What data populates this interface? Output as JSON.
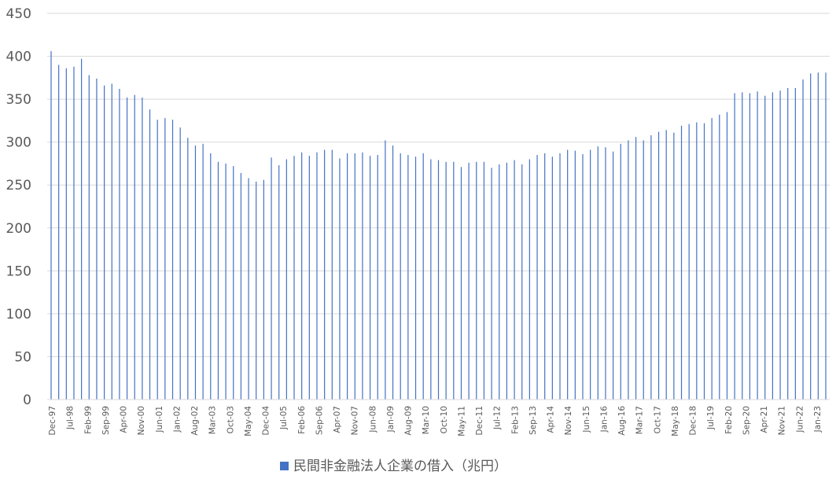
{
  "chart_data": {
    "type": "bar",
    "title": "",
    "xlabel": "",
    "ylabel": "",
    "ylim": [
      0,
      450
    ],
    "yticks": [
      0,
      50,
      100,
      150,
      200,
      250,
      300,
      350,
      400,
      450
    ],
    "grid": true,
    "legend_position": "bottom",
    "colors": {
      "series": "#4472C4",
      "grid": "#d9d9d9",
      "text": "#595959"
    },
    "series": [
      {
        "name": "民間非金融法人企業の借入（兆円）",
        "values": [
          406,
          390,
          386,
          388,
          397,
          378,
          374,
          366,
          368,
          362,
          352,
          355,
          352,
          338,
          326,
          328,
          326,
          317,
          305,
          296,
          298,
          287,
          277,
          275,
          272,
          264,
          258,
          254,
          256,
          282,
          273,
          280,
          284,
          288,
          284,
          288,
          291,
          291,
          281,
          287,
          287,
          288,
          284,
          285,
          302,
          296,
          287,
          285,
          283,
          287,
          280,
          279,
          277,
          277,
          271,
          276,
          277,
          277,
          270,
          274,
          276,
          279,
          274,
          280,
          285,
          287,
          283,
          287,
          291,
          290,
          286,
          291,
          295,
          294,
          289,
          298,
          302,
          306,
          302,
          308,
          312,
          314,
          311,
          319,
          321,
          323,
          322,
          328,
          332,
          335,
          357,
          358,
          357,
          359,
          354,
          358,
          360,
          363,
          363,
          373,
          380,
          381,
          381
        ]
      }
    ],
    "x_tick_labels": [
      "Dec-97",
      "Jul-98",
      "Feb-99",
      "Sep-99",
      "Apr-00",
      "Nov-00",
      "Jun-01",
      "Jan-02",
      "Aug-02",
      "Mar-03",
      "Oct-03",
      "May-04",
      "Dec-04",
      "Jul-05",
      "Feb-06",
      "Sep-06",
      "Apr-07",
      "Nov-07",
      "Jun-08",
      "Jan-09",
      "Aug-09",
      "Mar-10",
      "Oct-10",
      "May-11",
      "Dec-11",
      "Jul-12",
      "Feb-13",
      "Sep-13",
      "Apr-14",
      "Nov-14",
      "Jun-15",
      "Jan-16",
      "Aug-16",
      "Mar-17",
      "Oct-17",
      "May-18",
      "Dec-18",
      "Jul-19",
      "Feb-20",
      "Sep-20",
      "Apr-21",
      "Nov-21",
      "Jun-22",
      "Jan-23"
    ]
  }
}
